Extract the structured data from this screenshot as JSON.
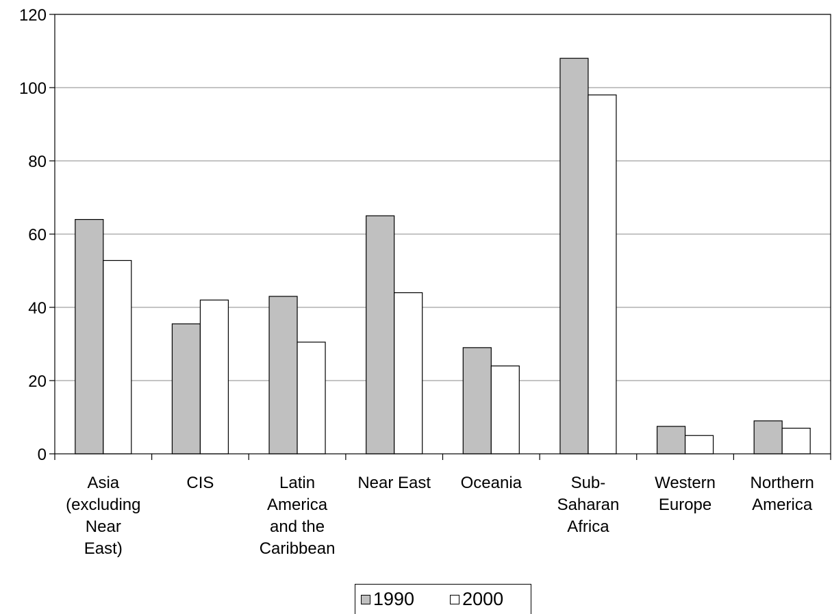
{
  "chart_data": {
    "type": "bar",
    "title": "",
    "xlabel": "",
    "ylabel": "",
    "ylim": [
      0,
      120
    ],
    "yticks": [
      "0",
      "20",
      "40",
      "60",
      "80",
      "100",
      "120"
    ],
    "grid": true,
    "legend_position": "bottom",
    "categories": [
      [
        "Asia",
        "(excluding",
        "Near",
        "East)"
      ],
      [
        "CIS"
      ],
      [
        "Latin",
        "America",
        "and the",
        "Caribbean"
      ],
      [
        "Near East"
      ],
      [
        "Oceania"
      ],
      [
        "Sub-",
        "Saharan",
        "Africa"
      ],
      [
        "Western",
        "Europe"
      ],
      [
        "Northern",
        "America"
      ]
    ],
    "series": [
      {
        "name": "1990",
        "color": "#c0c0c0",
        "values": [
          64,
          35.5,
          43,
          65,
          29,
          108,
          7.5,
          9
        ]
      },
      {
        "name": "2000",
        "color": "#ffffff",
        "values": [
          52.8,
          42,
          30.5,
          44,
          24,
          98,
          5,
          7
        ]
      }
    ]
  }
}
